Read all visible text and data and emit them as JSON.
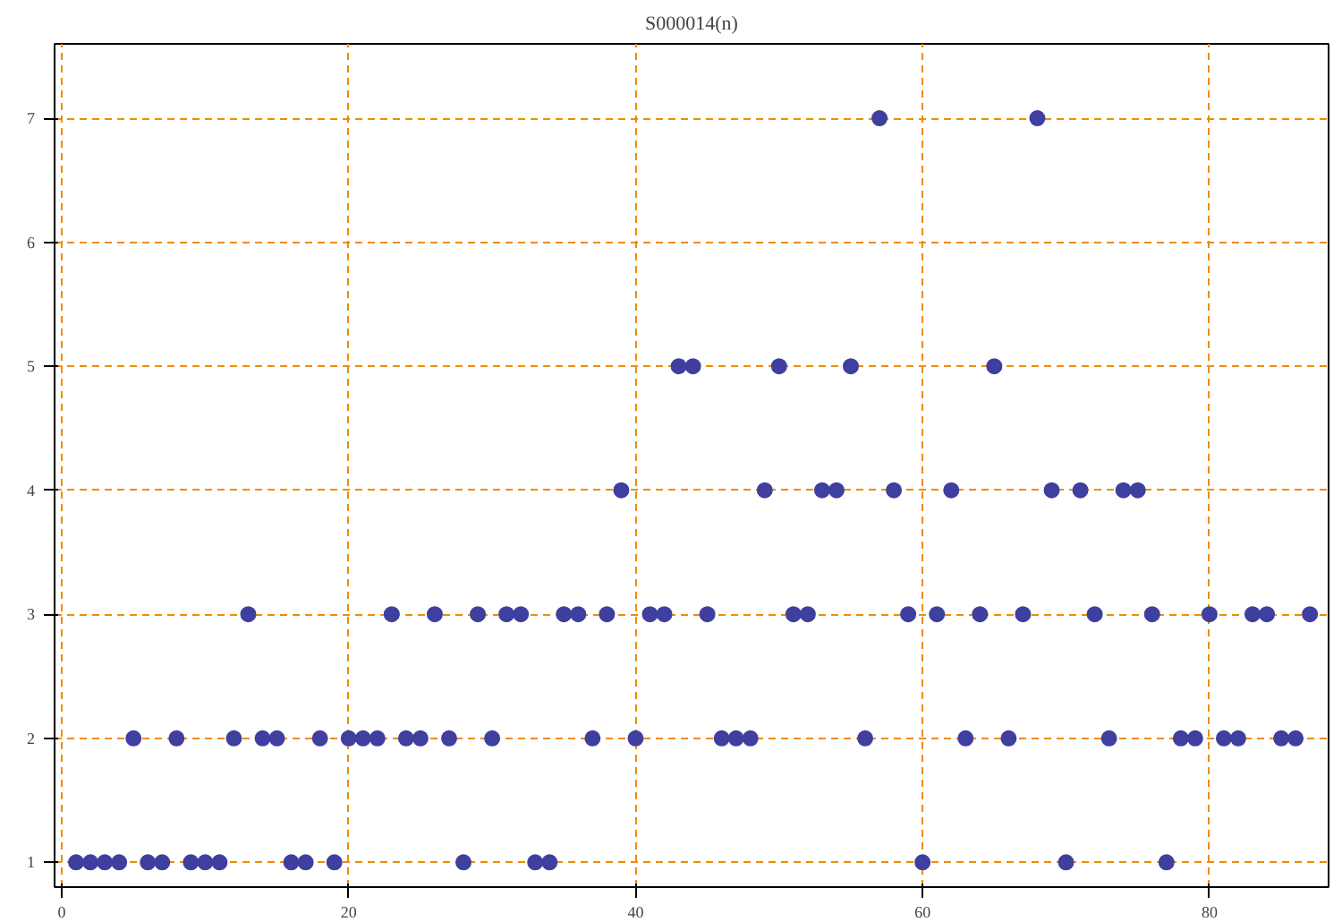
{
  "chart_data": {
    "type": "scatter",
    "title": "S000014(n)",
    "x": [
      1,
      2,
      3,
      4,
      5,
      6,
      7,
      8,
      9,
      10,
      11,
      12,
      13,
      14,
      15,
      16,
      17,
      18,
      19,
      20,
      21,
      22,
      23,
      24,
      25,
      26,
      27,
      28,
      29,
      30,
      31,
      32,
      33,
      34,
      35,
      36,
      37,
      38,
      39,
      40,
      41,
      42,
      43,
      44,
      45,
      46,
      47,
      48,
      49,
      50,
      51,
      52,
      53,
      54,
      55,
      56,
      57,
      58,
      59,
      60,
      61,
      62,
      63,
      64,
      65,
      66,
      67,
      68,
      69,
      70,
      71,
      72,
      73,
      74,
      75,
      76,
      77,
      78,
      79,
      80,
      81,
      82,
      83,
      84,
      85,
      86,
      87
    ],
    "values": [
      1,
      1,
      1,
      1,
      2,
      1,
      1,
      2,
      1,
      1,
      1,
      2,
      3,
      2,
      2,
      1,
      1,
      2,
      1,
      2,
      2,
      2,
      3,
      2,
      2,
      3,
      2,
      1,
      3,
      2,
      3,
      3,
      1,
      1,
      3,
      3,
      2,
      3,
      4,
      2,
      3,
      3,
      5,
      5,
      3,
      2,
      2,
      2,
      4,
      5,
      3,
      3,
      4,
      4,
      5,
      2,
      7,
      4,
      3,
      1,
      3,
      4,
      2,
      3,
      5,
      2,
      3,
      7,
      4,
      1,
      4,
      3,
      2,
      4,
      4,
      3,
      1,
      2,
      2,
      3,
      2,
      2,
      3,
      3,
      2,
      2,
      3
    ],
    "color": "#3f3f9f",
    "marker": "circle",
    "grid": true,
    "xlim": [
      -0.5,
      88.3
    ],
    "xticks": [
      0,
      20,
      40,
      60,
      80
    ],
    "ylim": [
      0.8,
      7.6
    ],
    "yticks": [
      1,
      2,
      3,
      4,
      5,
      6,
      7
    ]
  }
}
